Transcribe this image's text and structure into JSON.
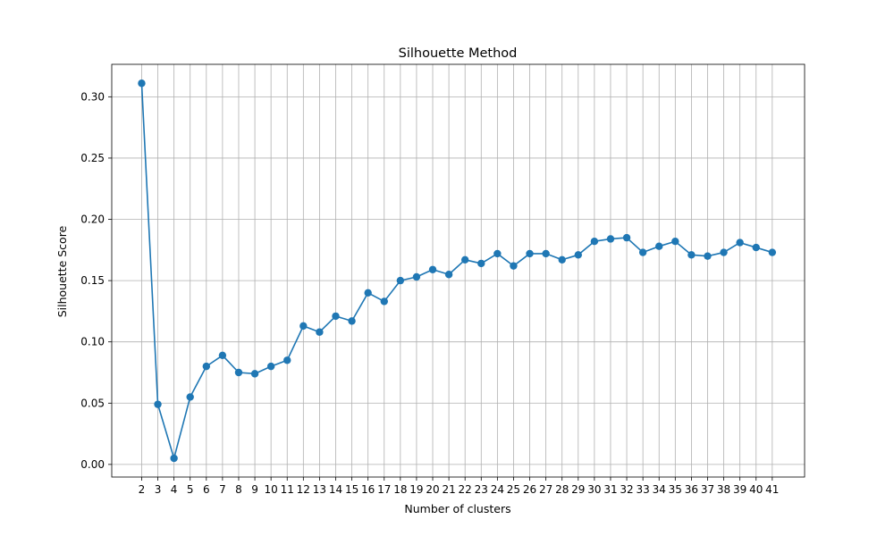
{
  "chart_data": {
    "type": "line",
    "title": "Silhouette Method",
    "xlabel": "Number of clusters",
    "ylabel": "Silhouette Score",
    "x": [
      2,
      3,
      4,
      5,
      6,
      7,
      8,
      9,
      10,
      11,
      12,
      13,
      14,
      15,
      16,
      17,
      18,
      19,
      20,
      21,
      22,
      23,
      24,
      25,
      26,
      27,
      28,
      29,
      30,
      31,
      32,
      33,
      34,
      35,
      36,
      37,
      38,
      39,
      40,
      41
    ],
    "series": [
      {
        "name": "",
        "color": "#1f77b4",
        "marker": "circle",
        "values": [
          0.311,
          0.049,
          0.005,
          0.055,
          0.08,
          0.089,
          0.075,
          0.074,
          0.08,
          0.085,
          0.113,
          0.108,
          0.121,
          0.117,
          0.14,
          0.133,
          0.15,
          0.153,
          0.159,
          0.155,
          0.167,
          0.164,
          0.172,
          0.162,
          0.172,
          0.172,
          0.167,
          0.171,
          0.182,
          0.184,
          0.185,
          0.173,
          0.178,
          0.182,
          0.171,
          0.17,
          0.173,
          0.181,
          0.177,
          0.173
        ]
      }
    ],
    "xticks": [
      "2",
      "3",
      "4",
      "5",
      "6",
      "7",
      "8",
      "9",
      "10",
      "11",
      "12",
      "13",
      "14",
      "15",
      "16",
      "17",
      "18",
      "19",
      "20",
      "21",
      "22",
      "23",
      "24",
      "25",
      "26",
      "27",
      "28",
      "29",
      "30",
      "31",
      "32",
      "33",
      "34",
      "35",
      "36",
      "37",
      "38",
      "39",
      "40",
      "41"
    ],
    "yticks": [
      0.0,
      0.05,
      0.1,
      0.15,
      0.2,
      0.25,
      0.3
    ],
    "ytick_labels": [
      "0.00",
      "0.05",
      "0.10",
      "0.15",
      "0.20",
      "0.25",
      "0.30"
    ],
    "xlim": [
      0.15,
      43.0
    ],
    "ylim": [
      -0.0103,
      0.3265
    ],
    "grid": true,
    "legend": "none"
  }
}
